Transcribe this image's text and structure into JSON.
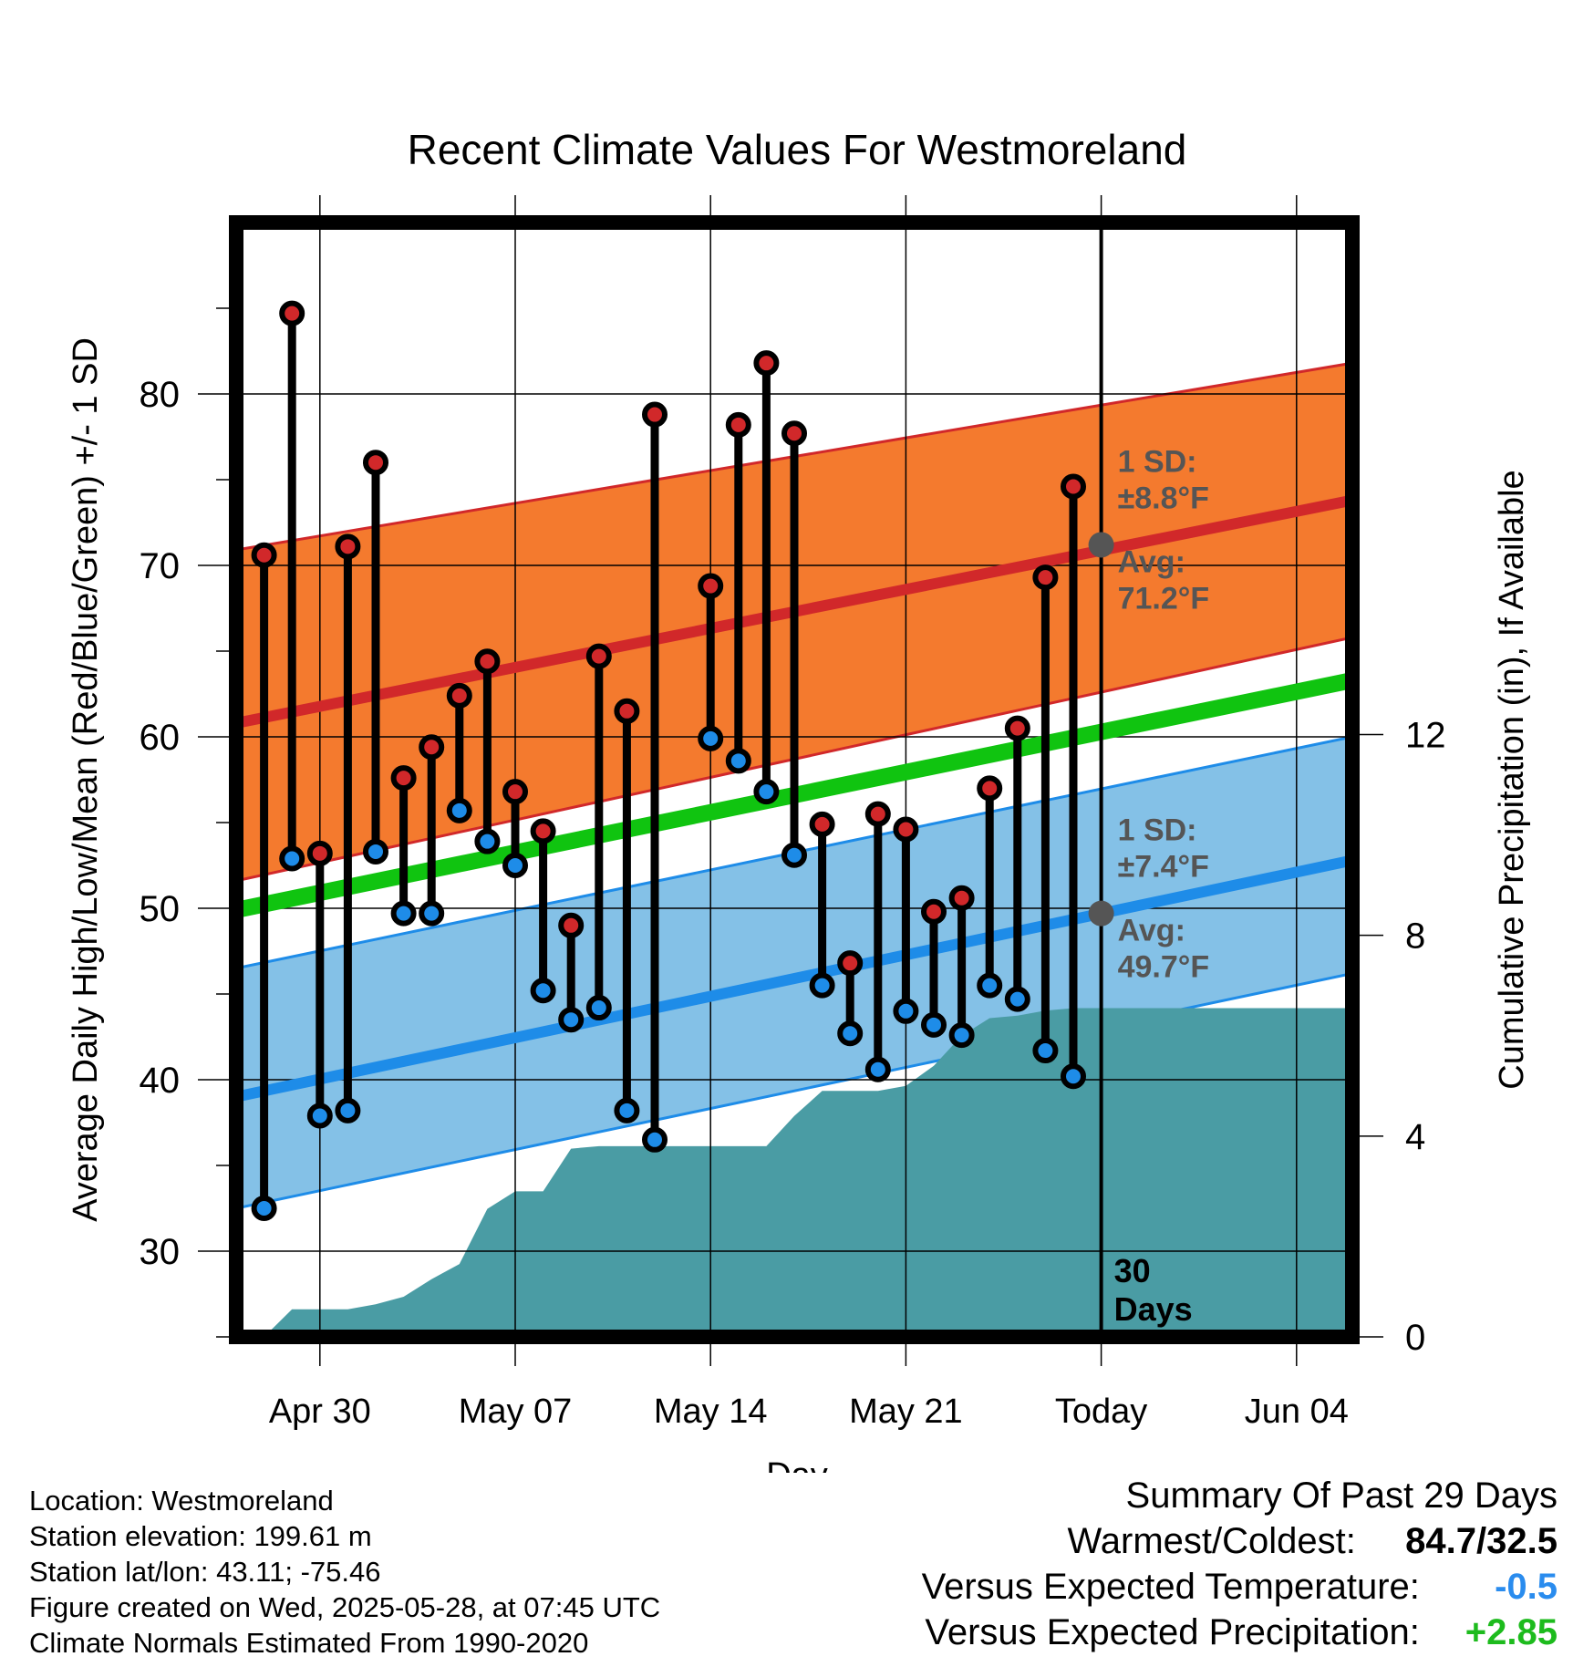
{
  "chart_data": {
    "type": "line",
    "title": "Recent Climate Values For Westmoreland",
    "xlabel": "Day",
    "ylabel": "Average Daily High/Low/Mean (Red/Blue/Green) +/- 1 SD",
    "y2label": "Cumulative Precipitation (in), If Available",
    "xlim": [
      "2025-04-27",
      "2025-06-06"
    ],
    "ylim": [
      25,
      90
    ],
    "y2lim": [
      0,
      22.2
    ],
    "x_ticks": [
      {
        "date": "2025-04-30",
        "label": "Apr 30"
      },
      {
        "date": "2025-05-07",
        "label": "May 07"
      },
      {
        "date": "2025-05-14",
        "label": "May 14"
      },
      {
        "date": "2025-05-21",
        "label": "May 21"
      },
      {
        "date": "2025-05-28",
        "label": "Today"
      },
      {
        "date": "2025-06-04",
        "label": "Jun 04"
      }
    ],
    "y_ticks": [
      30,
      40,
      50,
      60,
      70,
      80
    ],
    "y2_ticks": [
      0,
      4,
      8,
      12
    ],
    "grid": true,
    "today": "2025-05-28",
    "today_label": [
      "30",
      "Days"
    ],
    "normals": {
      "x": [
        "2025-04-27",
        "2025-06-06"
      ],
      "high_mean": [
        60.8,
        73.8
      ],
      "high_upper": [
        70.9,
        81.8
      ],
      "high_lower": [
        51.6,
        65.8
      ],
      "low_mean": [
        39.0,
        52.8
      ],
      "low_upper": [
        46.5,
        60.0
      ],
      "low_lower": [
        32.5,
        46.2
      ],
      "daily_mean": [
        49.9,
        63.3
      ]
    },
    "high_normal_label": {
      "sd": "1 SD:",
      "sd_value": "±8.8°F",
      "avg": "Avg:",
      "avg_value": "71.2°F",
      "today_value": 71.2
    },
    "low_normal_label": {
      "sd": "1 SD:",
      "sd_value": "±7.4°F",
      "avg": "Avg:",
      "avg_value": "49.7°F",
      "today_value": 49.7
    },
    "daily": {
      "dates": [
        "2025-04-28",
        "2025-04-29",
        "2025-04-30",
        "2025-05-01",
        "2025-05-02",
        "2025-05-03",
        "2025-05-04",
        "2025-05-05",
        "2025-05-06",
        "2025-05-07",
        "2025-05-08",
        "2025-05-09",
        "2025-05-10",
        "2025-05-11",
        "2025-05-12",
        "2025-05-14",
        "2025-05-15",
        "2025-05-16",
        "2025-05-17",
        "2025-05-18",
        "2025-05-19",
        "2025-05-20",
        "2025-05-21",
        "2025-05-22",
        "2025-05-23",
        "2025-05-24",
        "2025-05-25",
        "2025-05-26",
        "2025-05-27"
      ],
      "high": [
        70.6,
        84.7,
        53.2,
        71.1,
        76.0,
        57.6,
        59.4,
        62.4,
        64.4,
        56.8,
        54.5,
        49.0,
        64.7,
        61.5,
        78.8,
        68.8,
        78.2,
        81.8,
        77.7,
        54.9,
        46.8,
        55.5,
        54.6,
        49.8,
        50.6,
        57.0,
        60.5,
        69.3,
        74.6
      ],
      "low": [
        32.5,
        52.9,
        37.9,
        38.2,
        53.3,
        49.7,
        49.7,
        55.7,
        53.9,
        52.5,
        45.2,
        43.5,
        44.2,
        38.2,
        36.5,
        59.9,
        58.6,
        56.8,
        53.1,
        45.5,
        42.7,
        40.6,
        44.0,
        43.2,
        42.6,
        45.5,
        44.7,
        41.7,
        40.2
      ]
    },
    "precip": {
      "dates": [
        "2025-04-28",
        "2025-04-29",
        "2025-04-30",
        "2025-05-01",
        "2025-05-02",
        "2025-05-03",
        "2025-05-04",
        "2025-05-05",
        "2025-05-06",
        "2025-05-07",
        "2025-05-08",
        "2025-05-09",
        "2025-05-10",
        "2025-05-11",
        "2025-05-12",
        "2025-05-14",
        "2025-05-15",
        "2025-05-16",
        "2025-05-17",
        "2025-05-18",
        "2025-05-19",
        "2025-05-20",
        "2025-05-21",
        "2025-05-22",
        "2025-05-23",
        "2025-05-24",
        "2025-05-25",
        "2025-05-26",
        "2025-05-27",
        "2025-05-28",
        "2025-06-06"
      ],
      "cumulative": [
        0.0,
        0.55,
        0.55,
        0.55,
        0.65,
        0.8,
        1.15,
        1.45,
        2.55,
        2.9,
        2.9,
        3.75,
        3.8,
        3.8,
        3.8,
        3.8,
        3.8,
        3.8,
        4.4,
        4.9,
        4.9,
        4.9,
        5.0,
        5.4,
        6.0,
        6.35,
        6.4,
        6.5,
        6.55,
        6.55,
        6.55
      ]
    },
    "colors": {
      "high_band": "#f47a2e",
      "high_line": "#d1282a",
      "low_band": "#84c1e7",
      "low_line": "#1e8ce8",
      "mean_line": "#10c410",
      "precip": "#4a9ca4",
      "high_dot": "#d1282a",
      "low_dot": "#1e8ce8",
      "normal_label": "#555555"
    }
  },
  "footer": {
    "location": "Location: Westmoreland",
    "elevation": "Station elevation: 199.61 m",
    "latlon": "Station lat/lon: 43.11; -75.46",
    "created": "Figure created on Wed, 2025-05-28, at 07:45 UTC",
    "normals": "Climate Normals Estimated From 1990-2020"
  },
  "summary": {
    "title": "Summary Of Past 29 Days",
    "warmest_label": "Warmest/Coldest:",
    "warmest_value": "84.7/32.5",
    "temp_label": "Versus Expected Temperature:",
    "temp_value": "-0.5",
    "temp_color": "#2a8cee",
    "precip_label": "Versus Expected Precipitation:",
    "precip_value": "+2.85",
    "precip_color": "#1dbb1d"
  }
}
